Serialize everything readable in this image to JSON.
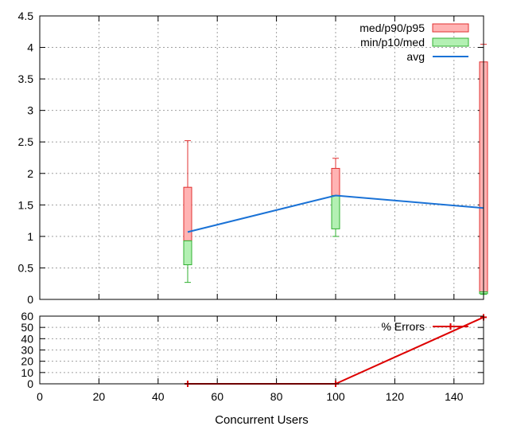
{
  "chart_data": [
    {
      "type": "box",
      "x": [
        50,
        100,
        150
      ],
      "series": [
        {
          "name": "med/p90/p95",
          "kind": "upper-box",
          "values": [
            {
              "x": 50,
              "med": 0.93,
              "p90": 1.78,
              "p95": 2.52
            },
            {
              "x": 100,
              "med": 1.65,
              "p90": 2.08,
              "p95": 2.24
            },
            {
              "x": 150,
              "med": 0.12,
              "p90": 3.77,
              "p95": 4.05
            }
          ],
          "color": "#ffb3b3",
          "stroke": "#e03030"
        },
        {
          "name": "min/p10/med",
          "kind": "lower-box",
          "values": [
            {
              "x": 50,
              "min": 0.27,
              "p10": 0.55,
              "med": 0.93
            },
            {
              "x": 100,
              "min": 1.0,
              "p10": 1.12,
              "med": 1.65
            },
            {
              "x": 150,
              "min": 0.08,
              "p10": 0.09,
              "med": 0.12
            }
          ],
          "color": "#b3f0b3",
          "stroke": "#30b030"
        },
        {
          "name": "avg",
          "kind": "line",
          "x": [
            50,
            100,
            150
          ],
          "values": [
            1.07,
            1.65,
            1.45
          ],
          "color": "#1a72d6"
        }
      ],
      "xlim": [
        0,
        150
      ],
      "ylim": [
        0,
        4.5
      ],
      "yticks": [
        "0",
        "0.5",
        "1",
        "1.5",
        "2",
        "2.5",
        "3",
        "3.5",
        "4",
        "4.5"
      ],
      "grid": true,
      "legend_position": "top-right"
    },
    {
      "type": "line",
      "series": [
        {
          "name": "% Errors",
          "x": [
            50,
            100,
            150
          ],
          "values": [
            0,
            0,
            59
          ],
          "color": "#dd0000"
        }
      ],
      "xlim": [
        0,
        150
      ],
      "ylim": [
        0,
        60
      ],
      "xticks": [
        "0",
        "20",
        "40",
        "60",
        "80",
        "100",
        "120",
        "140"
      ],
      "yticks": [
        "0",
        "10",
        "20",
        "30",
        "40",
        "50",
        "60"
      ],
      "xlabel": "Concurrent Users",
      "grid": true,
      "legend_position": "top-right"
    }
  ]
}
